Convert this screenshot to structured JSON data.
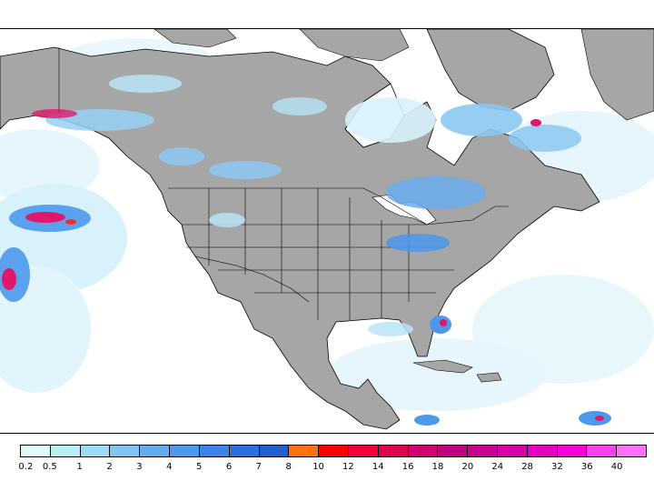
{
  "colors": {
    "land": "#a6a6a6",
    "ocean": "#ffffff",
    "border": "#000000",
    "precip_light": "#d8f4fb",
    "precip_mid": "#8cc8f2",
    "precip_heavy": "#2f6fd8",
    "precip_extreme": "#e0186a",
    "precip_max": "#ff2a2a"
  },
  "legend": {
    "colors": [
      "#e0fafc",
      "#b8f0f8",
      "#98dcf6",
      "#80c4f4",
      "#62acf0",
      "#4c98ec",
      "#3c84e8",
      "#2c70e0",
      "#2060d0",
      "#ff7010",
      "#ff0000",
      "#f0003c",
      "#e00050",
      "#d00070",
      "#c00080",
      "#c80090",
      "#d800a8",
      "#e800c0",
      "#f800d8",
      "#ff40ec",
      "#ff70f8"
    ],
    "labels": [
      "0.2",
      "0.5",
      "1",
      "2",
      "3",
      "4",
      "5",
      "6",
      "7",
      "8",
      "10",
      "12",
      "14",
      "16",
      "18",
      "20",
      "24",
      "28",
      "32",
      "36",
      "40"
    ]
  }
}
